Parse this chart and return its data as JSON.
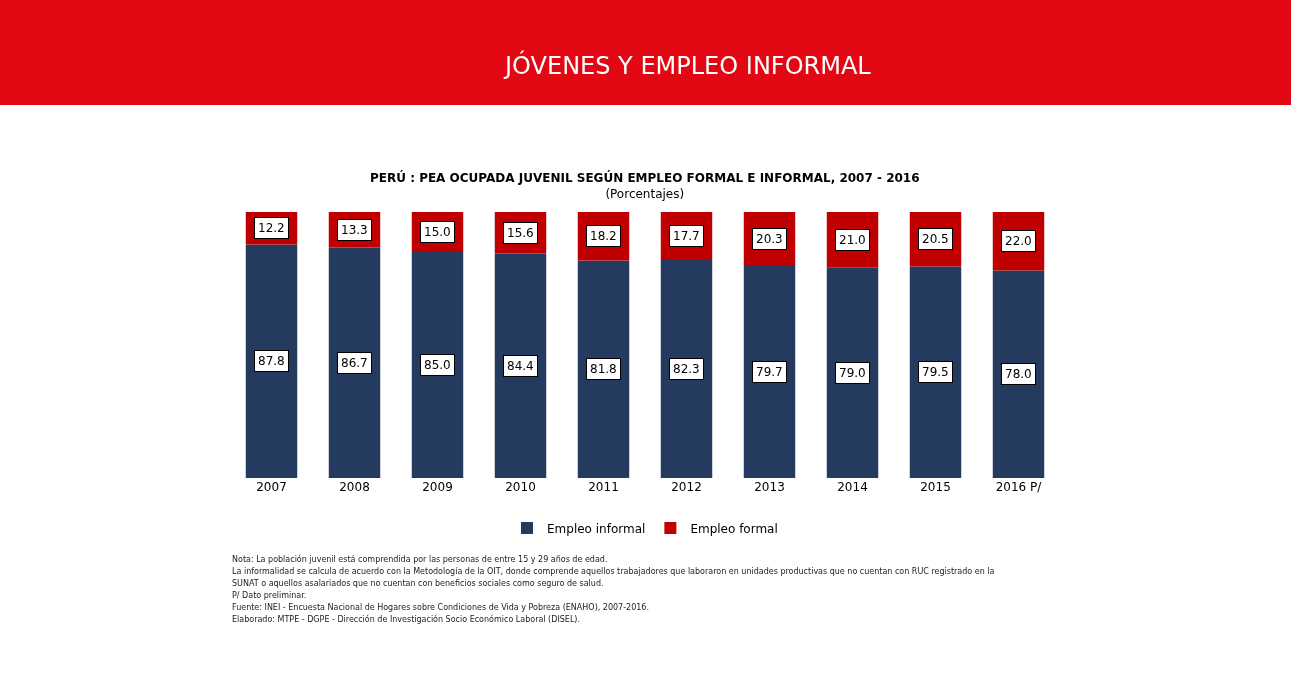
{
  "chart_data": {
    "type": "bar",
    "stacked": true,
    "legend": "bottom",
    "title": "JÓVENES Y EMPLEO INFORMAL",
    "subtitle": "PERÚ : PEA OCUPADA JUVENIL SEGÚN EMPLEO FORMAL E INFORMAL, 2007 - 2016\n(Porcentajes)",
    "categories": [
      "2007",
      "2008",
      "2009",
      "2010",
      "2011",
      "2012",
      "2013",
      "2014",
      "2015",
      "2016 P/"
    ],
    "series": [
      {
        "name": "Empleo informal",
        "color": "#243a5e",
        "values": [
          87.8,
          86.7,
          85.0,
          84.4,
          81.8,
          82.3,
          79.7,
          79.0,
          79.5,
          78.0
        ],
        "value_labels": [
          "87.8",
          "86.7",
          "85.0",
          "84.4",
          "81.8",
          "82.3",
          "79.7",
          "79.0",
          "79.5",
          "78.0"
        ]
      },
      {
        "name": "Empleo formal",
        "color": "#c00000",
        "values": [
          12.2,
          13.3,
          15.0,
          15.6,
          18.2,
          17.7,
          20.3,
          21.0,
          20.5,
          22.0
        ],
        "value_labels": [
          "12.2",
          "13.3",
          "15.0",
          "15.6",
          "18.2",
          "17.7",
          "20.3",
          "21.0",
          "20.5",
          "22.0"
        ]
      }
    ],
    "annotations": [
      "Nota: La población juvenil está comprendida por las personas de entre 15 y 29 años de edad.",
      "La informalidad se calcula de acuerdo con la Metodología de la OIT, donde comprende aquellos trabajadores que laboraron en unidades productivas que no cuentan con RUC registrado en la",
      "SUNAT o aquellos asalariados que no cuentan con beneficios sociales como seguro de salud.",
      "P/ Dato preliminar.",
      "Fuente: INEI - Encuesta Nacional de Hogares sobre Condiciones de Vida y Pobreza (ENAHO), 2007-2016.",
      "Elaborado: MTPE - DGPE - Dirección de Investigación Socio Económico Laboral (DISEL)."
    ]
  }
}
